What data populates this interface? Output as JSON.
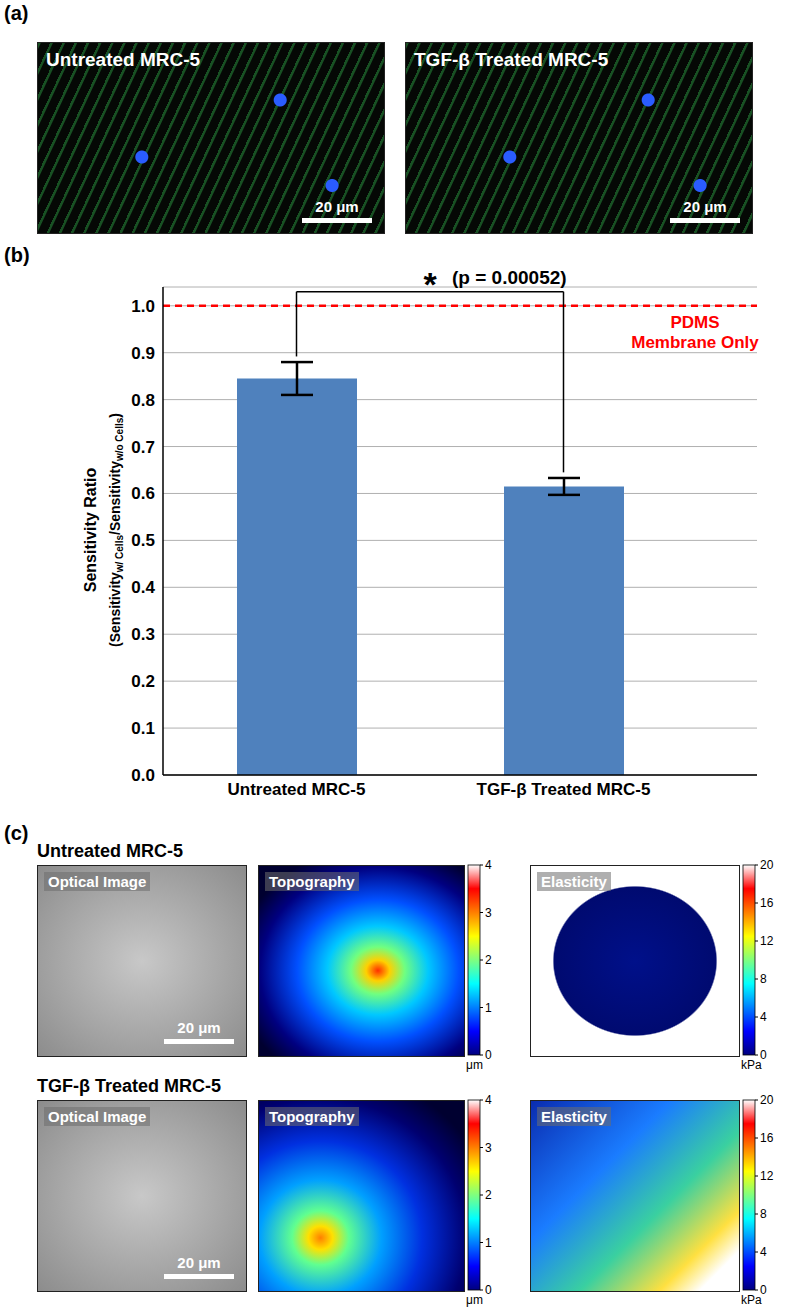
{
  "panel_a": {
    "label": "(a)",
    "images": [
      {
        "title": "Untreated MRC-5",
        "scale_bar": "20 μm"
      },
      {
        "title": "TGF-β Treated MRC-5",
        "scale_bar": "20 μm"
      }
    ]
  },
  "chart_data": {
    "type": "bar",
    "panel_label": "(b)",
    "categories": [
      "Untreated MRC-5",
      "TGF-β Treated MRC-5"
    ],
    "values": [
      0.845,
      0.615
    ],
    "errors": [
      0.035,
      0.018
    ],
    "color": "#4f81bd",
    "ylim": [
      0,
      1.04
    ],
    "yticks": [
      {
        "value": 0,
        "label": "0.0"
      },
      0.1,
      0.2,
      0.3,
      0.4,
      0.5,
      0.6,
      0.7,
      0.8,
      0.9,
      {
        "value": 1,
        "label": "1.0"
      }
    ],
    "grid": true,
    "y_label": "Sensitivity Ratio",
    "y_label_parts": [
      {
        "text": "(Sensitivity"
      },
      {
        "text": "w/ Cells",
        "sub": true
      },
      {
        "text": "/Sensitivity"
      },
      {
        "text": "w/o Cells",
        "sub": true
      },
      {
        "text": ")"
      }
    ],
    "reference_line": {
      "value": 1,
      "label": [
        "PDMS",
        "Membrane Only"
      ],
      "color": "#ff0000",
      "line_style": "dashed"
    },
    "significance": {
      "symbol": "*",
      "label": "(p = 0.00052)"
    }
  },
  "panel_c": {
    "label": "(c)",
    "rows": [
      {
        "title": "Untreated MRC-5",
        "optical": {
          "title": "Optical Image",
          "scale_bar": "20 μm"
        },
        "topography": {
          "title": "Topography"
        },
        "elasticity": {
          "title": "Elasticity"
        }
      },
      {
        "title": "TGF-β Treated MRC-5",
        "optical": {
          "title": "Optical Image",
          "scale_bar": "20 μm"
        },
        "topography": {
          "title": "Topography"
        },
        "elasticity": {
          "title": "Elasticity"
        }
      }
    ],
    "topography_colorbar": {
      "range": [
        0,
        4
      ],
      "ticks": [
        0,
        1,
        2,
        3,
        4
      ],
      "unit": "μm"
    },
    "elasticity_colorbar": {
      "range": [
        0,
        20
      ],
      "ticks": [
        0,
        4,
        8,
        12,
        16,
        20
      ],
      "unit": "kPa"
    }
  }
}
